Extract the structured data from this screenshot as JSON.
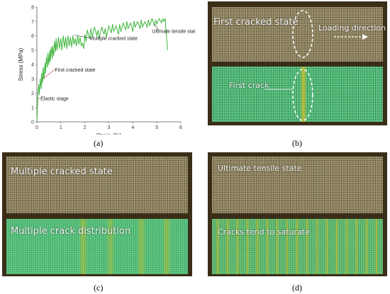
{
  "captions": {
    "a": "(a)",
    "b": "(b)",
    "c": "(c)",
    "d": "(d)"
  },
  "chart_data": {
    "type": "line",
    "xlabel": "Strain (%)",
    "ylabel": "Stress (MPa)",
    "xlim": [
      0,
      6
    ],
    "ylim": [
      0,
      8
    ],
    "xticks": [
      0,
      1,
      2,
      3,
      4,
      5,
      6
    ],
    "yticks": [
      0,
      1,
      2,
      3,
      4,
      5,
      6,
      7,
      8
    ],
    "grid": false,
    "line_color": "#3cb43c",
    "series": [
      {
        "values_x": [
          0,
          0.04,
          0.08,
          0.1,
          0.14,
          0.18,
          0.2,
          0.24,
          0.26,
          0.3,
          0.34,
          0.36,
          0.4,
          0.44,
          0.46,
          0.5,
          0.54,
          0.56,
          0.6,
          0.64,
          0.66,
          0.7,
          0.74,
          0.78,
          0.8,
          0.84,
          0.9,
          0.94,
          1.0,
          1.04,
          1.1,
          1.15,
          1.2,
          1.25,
          1.3,
          1.35,
          1.4,
          1.45,
          1.5,
          1.55,
          1.6,
          1.65,
          1.7,
          1.75,
          1.8,
          1.85,
          1.9,
          1.95,
          2.0,
          2.05,
          2.1,
          2.2,
          2.25,
          2.3,
          2.4,
          2.5,
          2.55,
          2.6,
          2.7,
          2.8,
          2.85,
          2.9,
          3.0,
          3.1,
          3.15,
          3.2,
          3.3,
          3.4,
          3.45,
          3.5,
          3.6,
          3.7,
          3.75,
          3.8,
          3.9,
          4.0,
          4.05,
          4.1,
          4.2,
          4.3,
          4.35,
          4.4,
          4.5,
          4.6,
          4.65,
          4.7,
          4.8,
          4.9,
          4.95,
          5.0,
          5.1,
          5.2,
          5.25,
          5.3,
          5.35,
          5.4,
          5.45
        ],
        "values_y": [
          0,
          1.8,
          2.6,
          1.9,
          3.0,
          2.3,
          3.4,
          2.7,
          3.8,
          3.0,
          4.1,
          3.4,
          4.5,
          3.8,
          4.8,
          4.0,
          5.0,
          4.2,
          5.2,
          4.4,
          5.3,
          4.6,
          5.6,
          4.9,
          5.8,
          5.0,
          5.9,
          5.1,
          5.8,
          5.0,
          6.0,
          5.2,
          5.9,
          5.1,
          6.0,
          5.3,
          5.9,
          5.2,
          6.0,
          5.4,
          5.8,
          5.3,
          6.0,
          5.4,
          5.9,
          5.3,
          5.5,
          5.1,
          6.1,
          5.6,
          6.4,
          5.8,
          6.5,
          5.9,
          6.6,
          6.0,
          6.4,
          5.8,
          6.6,
          6.1,
          6.5,
          5.9,
          6.7,
          6.2,
          6.8,
          6.3,
          6.7,
          6.1,
          6.8,
          6.3,
          6.9,
          6.4,
          7.0,
          6.5,
          6.9,
          6.3,
          7.0,
          6.6,
          7.0,
          6.5,
          7.1,
          6.6,
          7.0,
          6.6,
          7.1,
          6.7,
          7.2,
          6.7,
          7.1,
          6.8,
          7.2,
          6.9,
          7.2,
          7.0,
          7.2,
          6.0,
          5.0
        ]
      }
    ],
    "annotations": [
      {
        "text": "Multiple cracked state",
        "x": 2.2,
        "y": 5.7
      },
      {
        "text": "First cracked state",
        "x": 0.75,
        "y": 3.5
      },
      {
        "text": "Elastic stage",
        "x": 0.15,
        "y": 1.5
      },
      {
        "text": "Ultimate tensile state",
        "x": 4.8,
        "y": 6.2
      }
    ]
  },
  "photos": {
    "b": {
      "top_text": "First cracked state",
      "arrow_text": "Loading direction",
      "bot_text": "First crack"
    },
    "c": {
      "top_text": "Multiple cracked state",
      "bot_text": "Multiple crack distribution"
    },
    "d": {
      "top_text": "Ultimate tensile state",
      "bot_text": "Cracks tend to saturate"
    }
  },
  "colors": {
    "speckle_top": "#8a7d56",
    "speckle_bottom": "#3fae6a",
    "crack": "#b9a02a",
    "frame": "#3a2e18"
  }
}
